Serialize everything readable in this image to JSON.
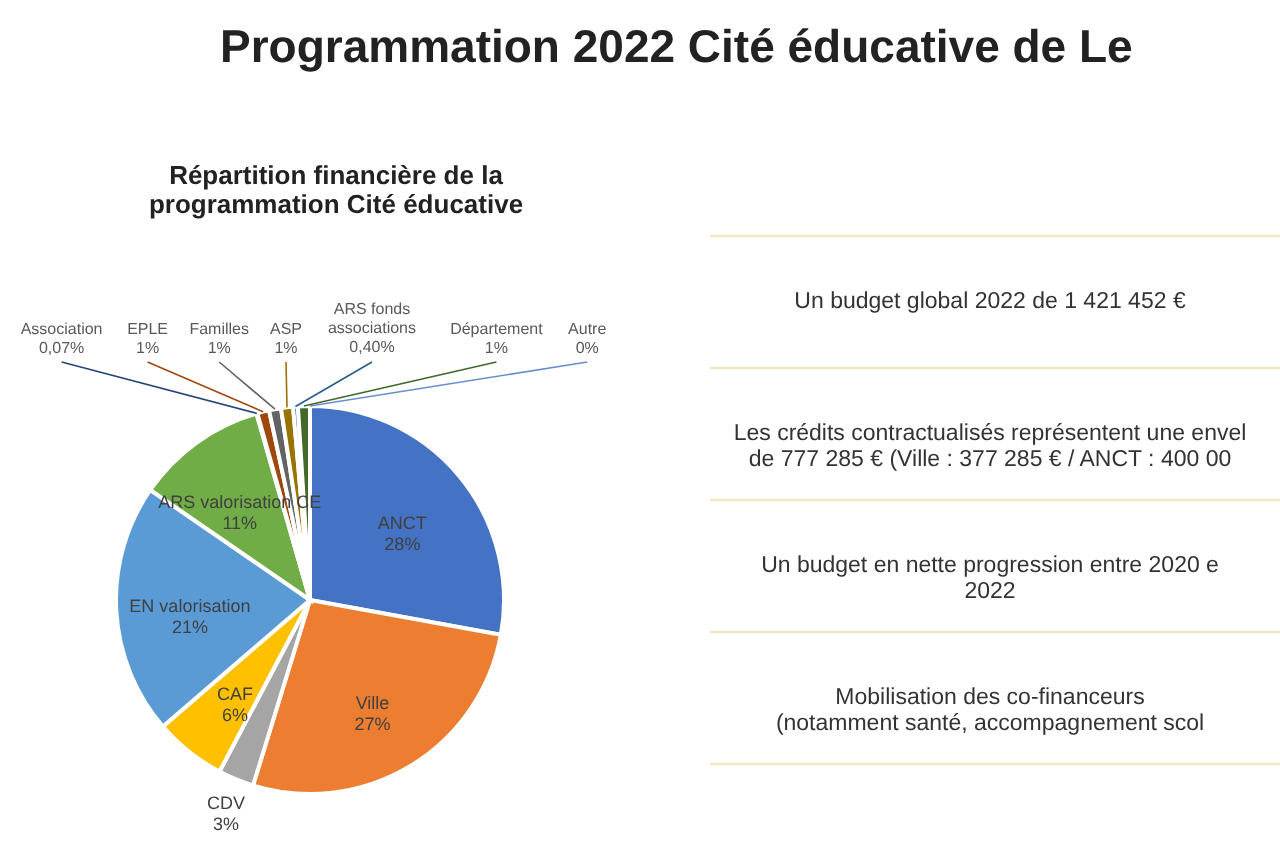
{
  "chart_data": {
    "type": "pie",
    "title": "Répartition financière de la programmation Cité éducative",
    "categories": [
      "ANCT",
      "Ville",
      "CDV",
      "CAF",
      "EN valorisation",
      "ARS valorisation CE",
      "Association",
      "EPLE",
      "Familles",
      "ASP",
      "ARS fonds associations",
      "Département",
      "Autre"
    ],
    "values": [
      28,
      27,
      3,
      6,
      21,
      11,
      0.07,
      1,
      1,
      1,
      0.4,
      1,
      0
    ],
    "value_labels": [
      "28%",
      "27%",
      "3%",
      "6%",
      "21%",
      "11%",
      "0,07%",
      "1%",
      "1%",
      "1%",
      "0,40%",
      "1%",
      "0%"
    ],
    "colors": [
      "#4472c4",
      "#ed7d31",
      "#a5a5a5",
      "#ffc000",
      "#5b9bd5",
      "#70ad47",
      "#264478",
      "#9e480e",
      "#636363",
      "#997300",
      "#255e91",
      "#43682b",
      "#698ed0"
    ],
    "annotations": [
      "Programmation 2022 Cité éducative de Le",
      "Un budget global 2022 de 1 421 452 €",
      "Les crédits contractualisés représentent une envel\nde 777 285 € (Ville : 377 285 € / ANCT : 400 00",
      "Un budget en nette progression entre 2020 e\n2022",
      "Mobilisation des co-financeurs\n(notamment santé, accompagnement scol"
    ]
  }
}
